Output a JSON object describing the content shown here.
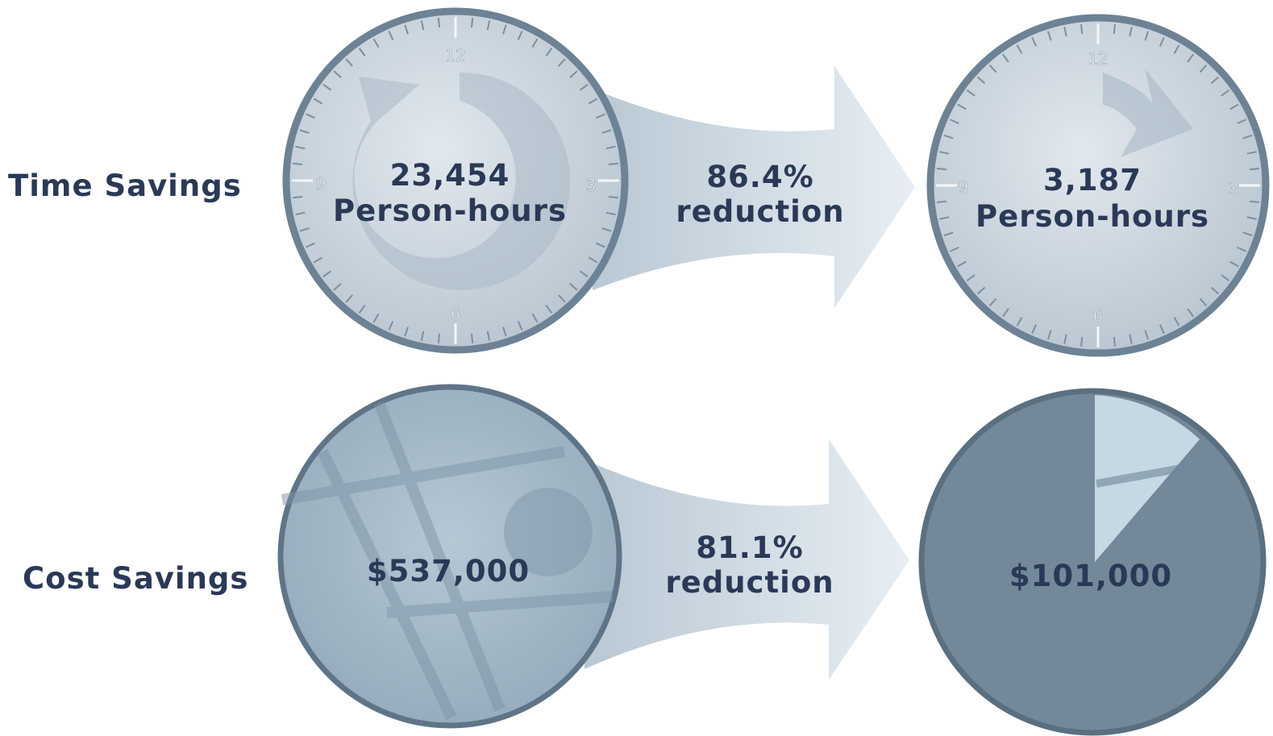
{
  "rows": [
    {
      "label": "Time Savings",
      "before": {
        "amount": "23,454",
        "unit": "Person-hours"
      },
      "change": {
        "amount": "86.4%",
        "unit": "reduction"
      },
      "after": {
        "amount": "3,187",
        "unit": "Person-hours"
      }
    },
    {
      "label": "Cost Savings",
      "before": {
        "amount": "$537,000"
      },
      "change": {
        "amount": "81.1%",
        "unit": "reduction"
      },
      "after": {
        "amount": "$101,000"
      }
    }
  ],
  "clock_numerals": [
    "12",
    "3",
    "6",
    "9"
  ]
}
